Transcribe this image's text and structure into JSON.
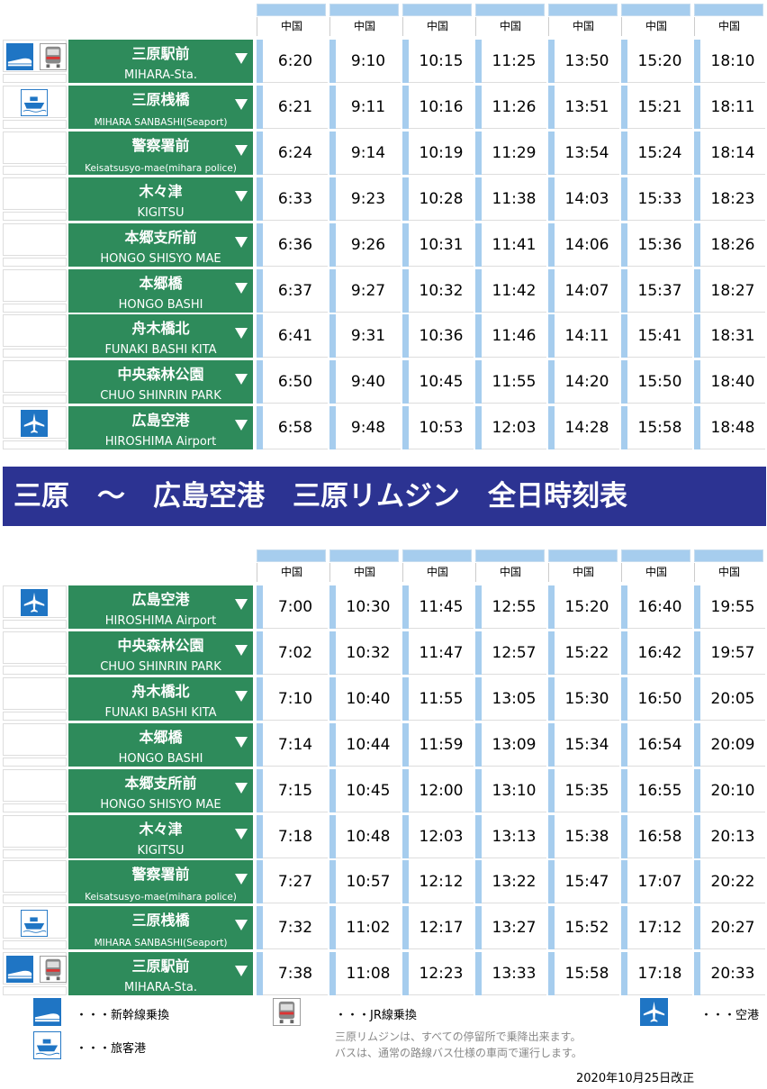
{
  "banner": "三原　～　広島空港　三原リムジン　全日時刻表",
  "operator_label": "中国",
  "up": {
    "stops": [
      {
        "jp": "三原駅前",
        "en": "MIHARA-Sta.",
        "icons": [
          "shinkansen-icon",
          "jr-train-icon"
        ]
      },
      {
        "jp": "三原桟橋",
        "en": "MIHARA SANBASHI(Seaport)",
        "icons": [
          "ferry-icon"
        ]
      },
      {
        "jp": "警察署前",
        "en": "Keisatsusyo-mae(mihara police)",
        "icons": []
      },
      {
        "jp": "木々津",
        "en": "KIGITSU",
        "icons": []
      },
      {
        "jp": "本郷支所前",
        "en": "HONGO SHISYO MAE",
        "icons": []
      },
      {
        "jp": "本郷橋",
        "en": "HONGO BASHI",
        "icons": []
      },
      {
        "jp": "舟木橋北",
        "en": "FUNAKI BASHI KITA",
        "icons": []
      },
      {
        "jp": "中央森林公園",
        "en": "CHUO SHINRIN PARK",
        "icons": []
      },
      {
        "jp": "広島空港",
        "en": "HIROSHIMA Airport",
        "icons": [
          "airplane-icon"
        ]
      }
    ],
    "times": [
      [
        "6:20",
        "9:10",
        "10:15",
        "11:25",
        "13:50",
        "15:20",
        "18:10"
      ],
      [
        "6:21",
        "9:11",
        "10:16",
        "11:26",
        "13:51",
        "15:21",
        "18:11"
      ],
      [
        "6:24",
        "9:14",
        "10:19",
        "11:29",
        "13:54",
        "15:24",
        "18:14"
      ],
      [
        "6:33",
        "9:23",
        "10:28",
        "11:38",
        "14:03",
        "15:33",
        "18:23"
      ],
      [
        "6:36",
        "9:26",
        "10:31",
        "11:41",
        "14:06",
        "15:36",
        "18:26"
      ],
      [
        "6:37",
        "9:27",
        "10:32",
        "11:42",
        "14:07",
        "15:37",
        "18:27"
      ],
      [
        "6:41",
        "9:31",
        "10:36",
        "11:46",
        "14:11",
        "15:41",
        "18:31"
      ],
      [
        "6:50",
        "9:40",
        "10:45",
        "11:55",
        "14:20",
        "15:50",
        "18:40"
      ],
      [
        "6:58",
        "9:48",
        "10:53",
        "12:03",
        "14:28",
        "15:58",
        "18:48"
      ]
    ]
  },
  "down": {
    "stops": [
      {
        "jp": "広島空港",
        "en": "HIROSHIMA Airport",
        "icons": [
          "airplane-icon"
        ]
      },
      {
        "jp": "中央森林公園",
        "en": "CHUO SHINRIN PARK",
        "icons": []
      },
      {
        "jp": "舟木橋北",
        "en": "FUNAKI BASHI KITA",
        "icons": []
      },
      {
        "jp": "本郷橋",
        "en": "HONGO BASHI",
        "icons": []
      },
      {
        "jp": "本郷支所前",
        "en": "HONGO SHISYO MAE",
        "icons": []
      },
      {
        "jp": "木々津",
        "en": "KIGITSU",
        "icons": []
      },
      {
        "jp": "警察署前",
        "en": "Keisatsusyo-mae(mihara police)",
        "icons": []
      },
      {
        "jp": "三原桟橋",
        "en": "MIHARA SANBASHI(Seaport)",
        "icons": [
          "ferry-icon"
        ]
      },
      {
        "jp": "三原駅前",
        "en": "MIHARA-Sta.",
        "icons": [
          "shinkansen-icon",
          "jr-train-icon"
        ]
      }
    ],
    "times": [
      [
        "7:00",
        "10:30",
        "11:45",
        "12:55",
        "15:20",
        "16:40",
        "19:55"
      ],
      [
        "7:02",
        "10:32",
        "11:47",
        "12:57",
        "15:22",
        "16:42",
        "19:57"
      ],
      [
        "7:10",
        "10:40",
        "11:55",
        "13:05",
        "15:30",
        "16:50",
        "20:05"
      ],
      [
        "7:14",
        "10:44",
        "11:59",
        "13:09",
        "15:34",
        "16:54",
        "20:09"
      ],
      [
        "7:15",
        "10:45",
        "12:00",
        "13:10",
        "15:35",
        "16:55",
        "20:10"
      ],
      [
        "7:18",
        "10:48",
        "12:03",
        "13:13",
        "15:38",
        "16:58",
        "20:13"
      ],
      [
        "7:27",
        "10:57",
        "12:12",
        "13:22",
        "15:47",
        "17:07",
        "20:22"
      ],
      [
        "7:32",
        "11:02",
        "12:17",
        "13:27",
        "15:52",
        "17:12",
        "20:27"
      ],
      [
        "7:38",
        "11:08",
        "12:23",
        "13:33",
        "15:58",
        "17:18",
        "20:33"
      ]
    ]
  },
  "legend": {
    "shinkansen": "・・・新幹線乗換",
    "jr": "・・・JR線乗換",
    "airport": "・・・空港",
    "ferry": "・・・旅客港"
  },
  "notes": [
    "三原リムジンは、すべての停留所で乗降出来ます。",
    "バスは、通常の路線バス仕様の車両で運行します。"
  ],
  "revision_date": "2020年10月25日改正",
  "colors": {
    "stop_green": "#2e8b5b",
    "banner_navy": "#2c3392",
    "header_blue": "#a6cdee",
    "icon_blue": "#1f75c4"
  }
}
